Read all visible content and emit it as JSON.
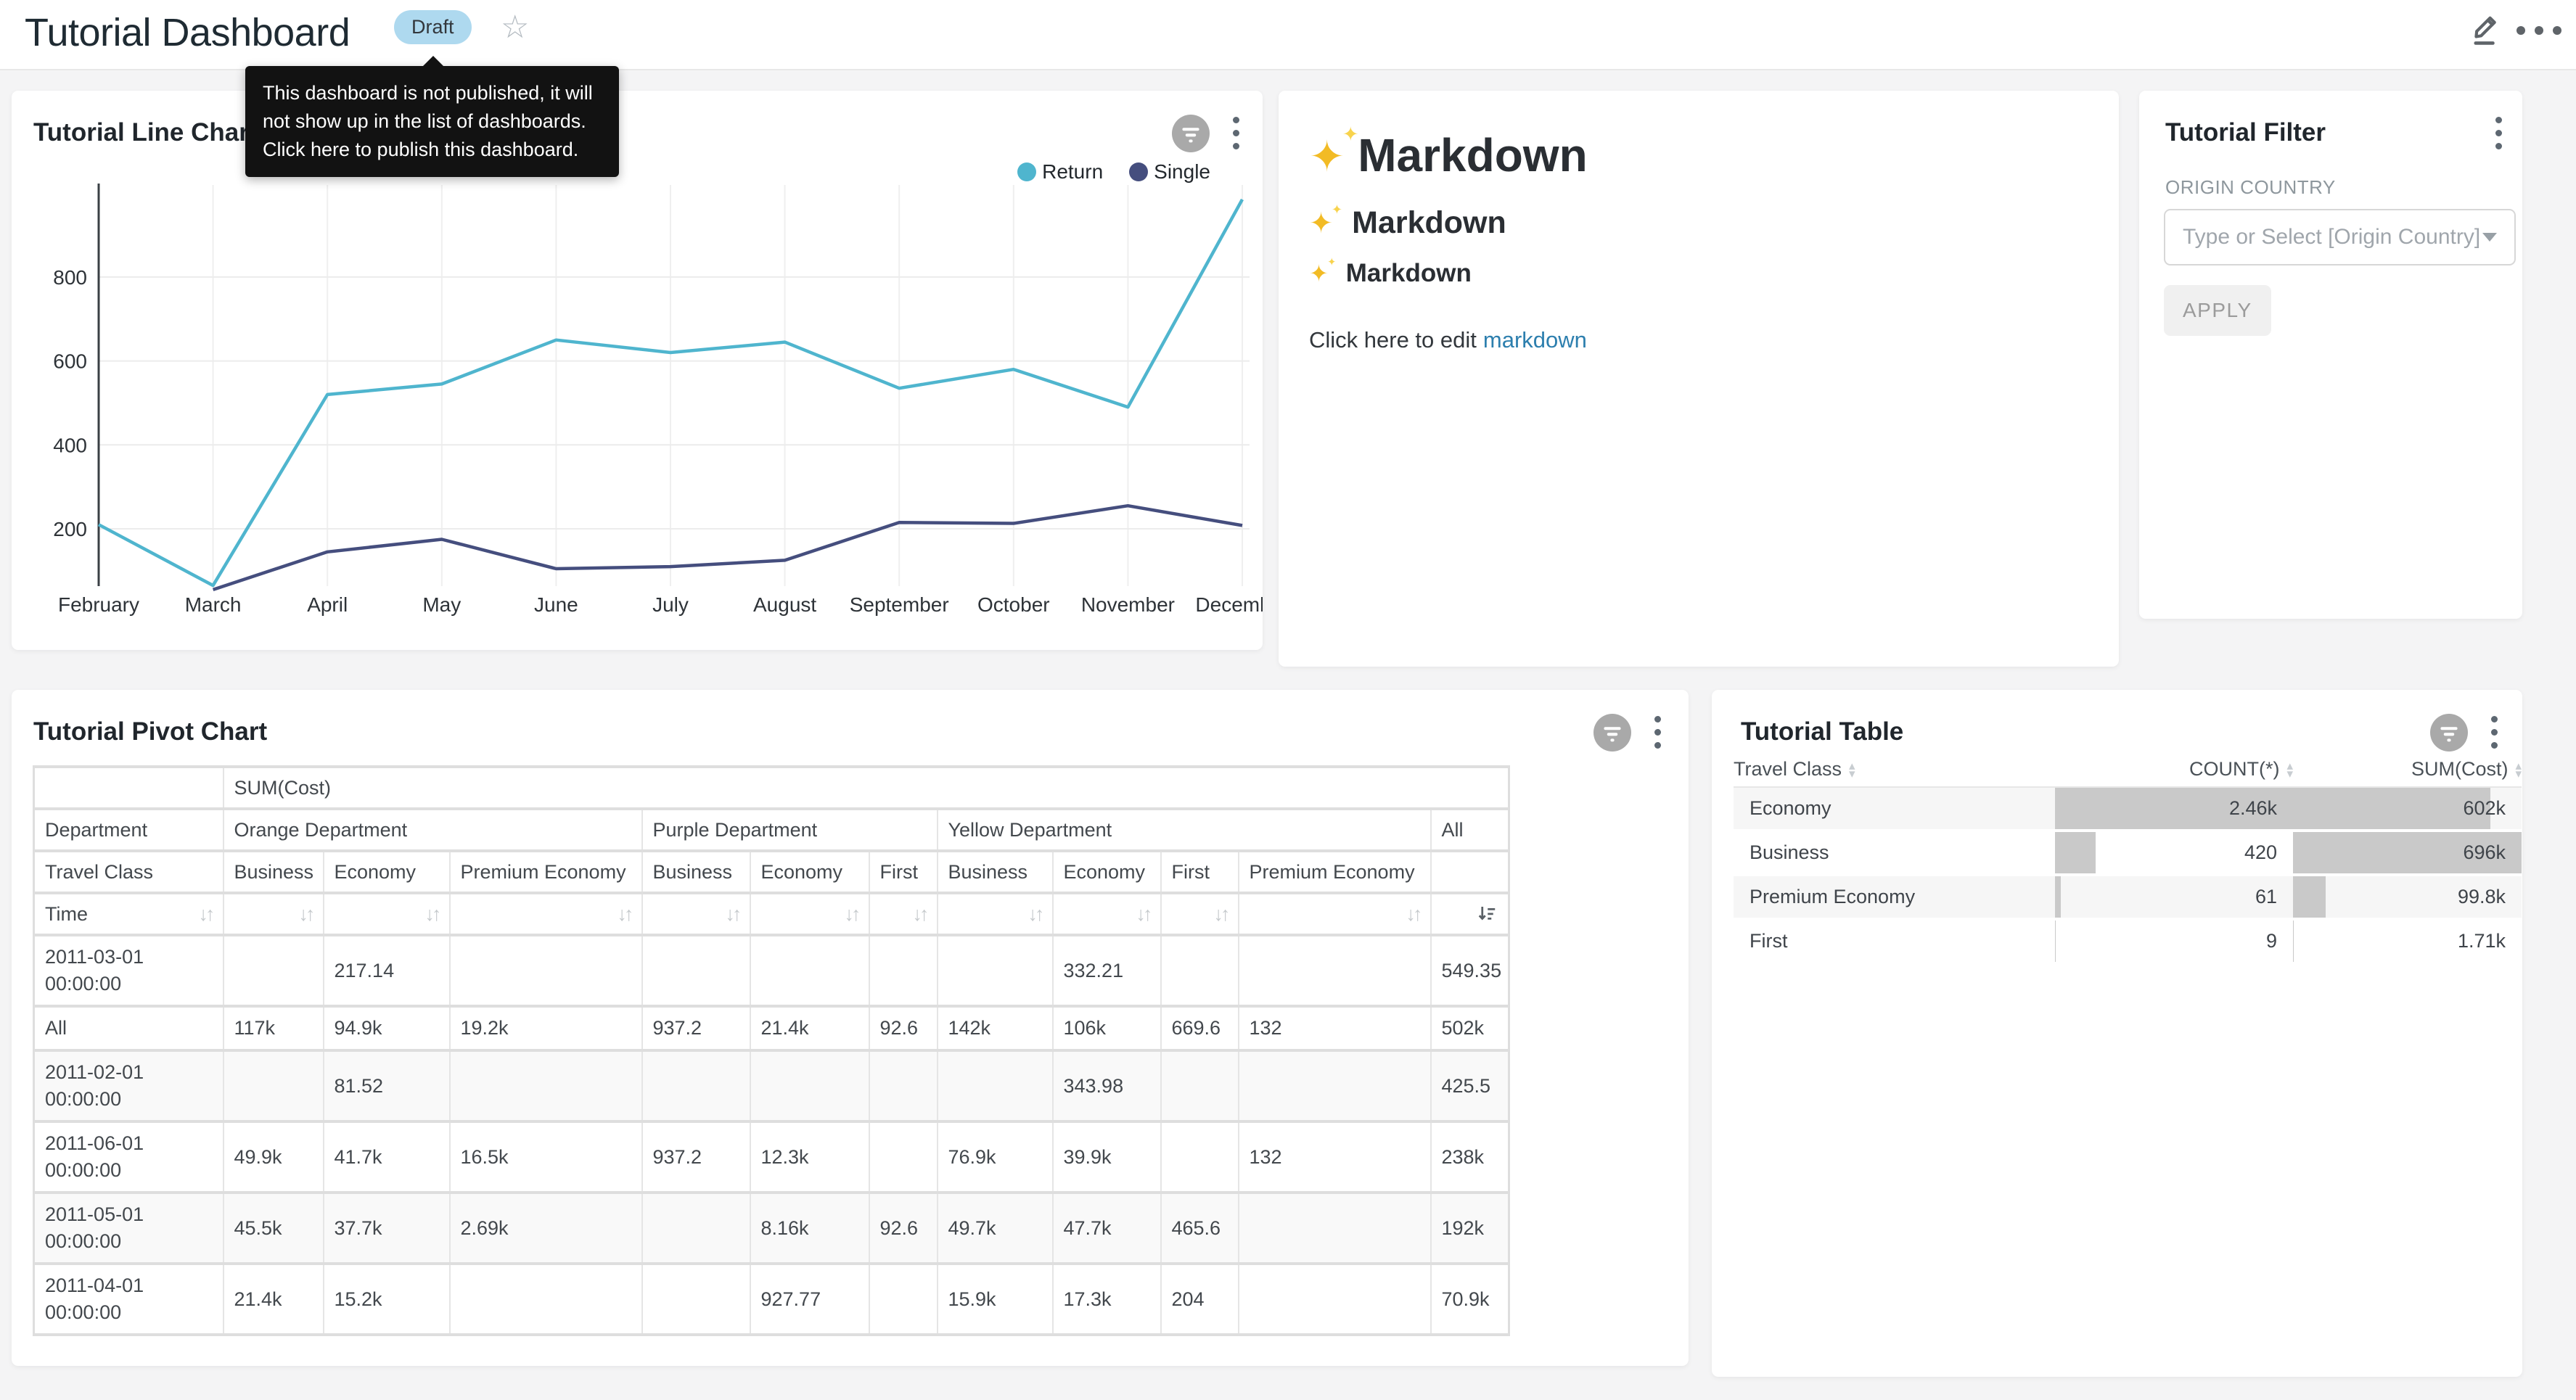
{
  "header": {
    "title": "Tutorial Dashboard",
    "badge": "Draft",
    "tooltip": "This dashboard is not published, it will not show up in the list of dashboards. Click here to publish this dashboard."
  },
  "markdown": {
    "h1": "Markdown",
    "h2": "Markdown",
    "h3": "Markdown",
    "footer_text": "Click here to edit",
    "footer_link": "markdown"
  },
  "filter": {
    "title": "Tutorial Filter",
    "field_label": "ORIGIN COUNTRY",
    "placeholder": "Type or Select [Origin Country]",
    "apply_label": "APPLY"
  },
  "colors": {
    "return_line": "#4FB5CE",
    "single_line": "#454E7E",
    "badge_bg": "#AED9EF",
    "link": "#2D7FAE",
    "bar_fill": "#C9C9C9"
  },
  "chart_data": [
    {
      "type": "line",
      "title": "Tutorial Line Chart",
      "x": [
        "February",
        "March",
        "April",
        "May",
        "June",
        "July",
        "August",
        "September",
        "October",
        "November",
        "December"
      ],
      "series": [
        {
          "name": "Return",
          "color": "#4FB5CE",
          "values": [
            210,
            65,
            520,
            545,
            650,
            620,
            645,
            535,
            580,
            490,
            985
          ]
        },
        {
          "name": "Single",
          "color": "#454E7E",
          "values": [
            null,
            55,
            145,
            175,
            105,
            110,
            125,
            215,
            213,
            255,
            208
          ]
        }
      ],
      "yticks": [
        200,
        400,
        600,
        800
      ],
      "ylim": [
        60,
        1010
      ],
      "grid": true,
      "legend_position": "top-right"
    },
    {
      "type": "table",
      "title": "Tutorial Pivot Chart",
      "measure": "SUM(Cost)",
      "col_dimension": "Department",
      "class_dimension": "Travel Class",
      "row_dimension": "Time",
      "col_groups": [
        {
          "label": "Orange Department",
          "cols": [
            "Business",
            "Economy",
            "Premium Economy"
          ]
        },
        {
          "label": "Purple Department",
          "cols": [
            "Business",
            "Economy",
            "First"
          ]
        },
        {
          "label": "Yellow Department",
          "cols": [
            "Business",
            "Economy",
            "First",
            "Premium Economy"
          ]
        },
        {
          "label": "All",
          "cols": [
            ""
          ]
        }
      ],
      "rows": [
        {
          "label": "2011-03-01 00:00:00",
          "cells": [
            "",
            "217.14",
            "",
            "",
            "",
            "",
            "",
            "332.21",
            "",
            "",
            "549.35"
          ]
        },
        {
          "label": "All",
          "cells": [
            "117k",
            "94.9k",
            "19.2k",
            "937.2",
            "21.4k",
            "92.6",
            "142k",
            "106k",
            "669.6",
            "132",
            "502k"
          ]
        },
        {
          "label": "2011-02-01 00:00:00",
          "cells": [
            "",
            "81.52",
            "",
            "",
            "",
            "",
            "",
            "343.98",
            "",
            "",
            "425.5"
          ]
        },
        {
          "label": "2011-06-01 00:00:00",
          "cells": [
            "49.9k",
            "41.7k",
            "16.5k",
            "937.2",
            "12.3k",
            "",
            "76.9k",
            "39.9k",
            "",
            "132",
            "238k"
          ]
        },
        {
          "label": "2011-05-01 00:00:00",
          "cells": [
            "45.5k",
            "37.7k",
            "2.69k",
            "",
            "8.16k",
            "92.6",
            "49.7k",
            "47.7k",
            "465.6",
            "",
            "192k"
          ]
        },
        {
          "label": "2011-04-01 00:00:00",
          "cells": [
            "21.4k",
            "15.2k",
            "",
            "",
            "927.77",
            "",
            "15.9k",
            "17.3k",
            "204",
            "",
            "70.9k"
          ]
        }
      ]
    },
    {
      "type": "table",
      "title": "Tutorial Table",
      "columns": [
        "Travel Class",
        "COUNT(*)",
        "SUM(Cost)"
      ],
      "rows": [
        {
          "travel_class": "Economy",
          "count": "2.46k",
          "sum": "602k",
          "count_pct": 100,
          "sum_pct": 86.5
        },
        {
          "travel_class": "Business",
          "count": "420",
          "sum": "696k",
          "count_pct": 17,
          "sum_pct": 100
        },
        {
          "travel_class": "Premium Economy",
          "count": "61",
          "sum": "99.8k",
          "count_pct": 2.5,
          "sum_pct": 14.3
        },
        {
          "travel_class": "First",
          "count": "9",
          "sum": "1.71k",
          "count_pct": 0.4,
          "sum_pct": 0.3
        }
      ]
    }
  ]
}
